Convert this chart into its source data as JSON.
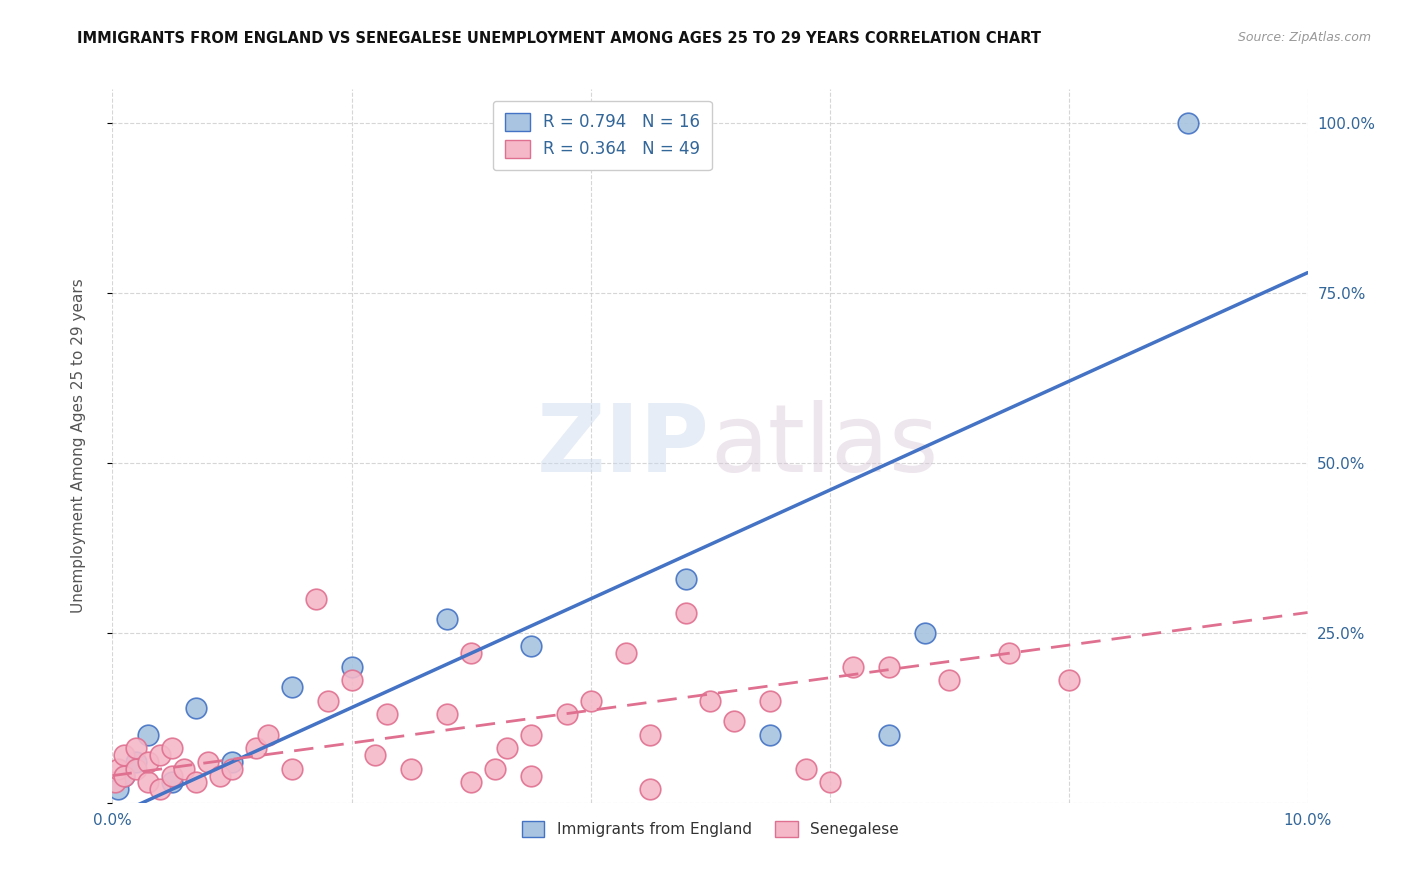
{
  "title": "IMMIGRANTS FROM ENGLAND VS SENEGALESE UNEMPLOYMENT AMONG AGES 25 TO 29 YEARS CORRELATION CHART",
  "source": "Source: ZipAtlas.com",
  "ylabel": "Unemployment Among Ages 25 to 29 years",
  "xlim": [
    0.0,
    0.1
  ],
  "ylim": [
    0.0,
    1.05
  ],
  "xticks": [
    0.0,
    0.02,
    0.04,
    0.06,
    0.08,
    0.1
  ],
  "xticklabels": [
    "0.0%",
    "",
    "",
    "",
    "",
    "10.0%"
  ],
  "ytick_positions": [
    0.0,
    0.25,
    0.5,
    0.75,
    1.0
  ],
  "ytick_labels": [
    "",
    "25.0%",
    "50.0%",
    "75.0%",
    "100.0%"
  ],
  "england_R": 0.794,
  "england_N": 16,
  "senegal_R": 0.364,
  "senegal_N": 49,
  "england_color": "#a8c4e0",
  "senegal_color": "#f4b8c8",
  "england_line_color": "#4472c4",
  "senegal_line_color": "#e07090",
  "background_color": "#ffffff",
  "watermark": "ZIPatlas",
  "england_scatter_x": [
    0.0005,
    0.001,
    0.002,
    0.003,
    0.005,
    0.007,
    0.01,
    0.015,
    0.02,
    0.028,
    0.035,
    0.048,
    0.055,
    0.065,
    0.068,
    0.09
  ],
  "england_scatter_y": [
    0.02,
    0.04,
    0.06,
    0.1,
    0.03,
    0.14,
    0.06,
    0.17,
    0.2,
    0.27,
    0.23,
    0.33,
    0.1,
    0.1,
    0.25,
    1.0
  ],
  "senegal_scatter_x": [
    0.0002,
    0.0005,
    0.001,
    0.001,
    0.002,
    0.002,
    0.003,
    0.003,
    0.004,
    0.004,
    0.005,
    0.005,
    0.006,
    0.007,
    0.008,
    0.009,
    0.01,
    0.012,
    0.013,
    0.015,
    0.017,
    0.018,
    0.02,
    0.022,
    0.023,
    0.025,
    0.028,
    0.03,
    0.03,
    0.032,
    0.033,
    0.035,
    0.035,
    0.038,
    0.04,
    0.043,
    0.045,
    0.045,
    0.048,
    0.05,
    0.052,
    0.055,
    0.058,
    0.06,
    0.062,
    0.065,
    0.07,
    0.075,
    0.08
  ],
  "senegal_scatter_y": [
    0.03,
    0.05,
    0.04,
    0.07,
    0.05,
    0.08,
    0.03,
    0.06,
    0.02,
    0.07,
    0.04,
    0.08,
    0.05,
    0.03,
    0.06,
    0.04,
    0.05,
    0.08,
    0.1,
    0.05,
    0.3,
    0.15,
    0.18,
    0.07,
    0.13,
    0.05,
    0.13,
    0.03,
    0.22,
    0.05,
    0.08,
    0.1,
    0.04,
    0.13,
    0.15,
    0.22,
    0.1,
    0.02,
    0.28,
    0.15,
    0.12,
    0.15,
    0.05,
    0.03,
    0.2,
    0.2,
    0.18,
    0.22,
    0.18
  ],
  "legend_label_england": "Immigrants from England",
  "legend_label_senegal": "Senegalese",
  "eng_line_x0": 0.0,
  "eng_line_y0": -0.02,
  "eng_line_x1": 0.1,
  "eng_line_y1": 0.78,
  "sen_line_x0": 0.0,
  "sen_line_y0": 0.04,
  "sen_line_x1": 0.1,
  "sen_line_y1": 0.28
}
